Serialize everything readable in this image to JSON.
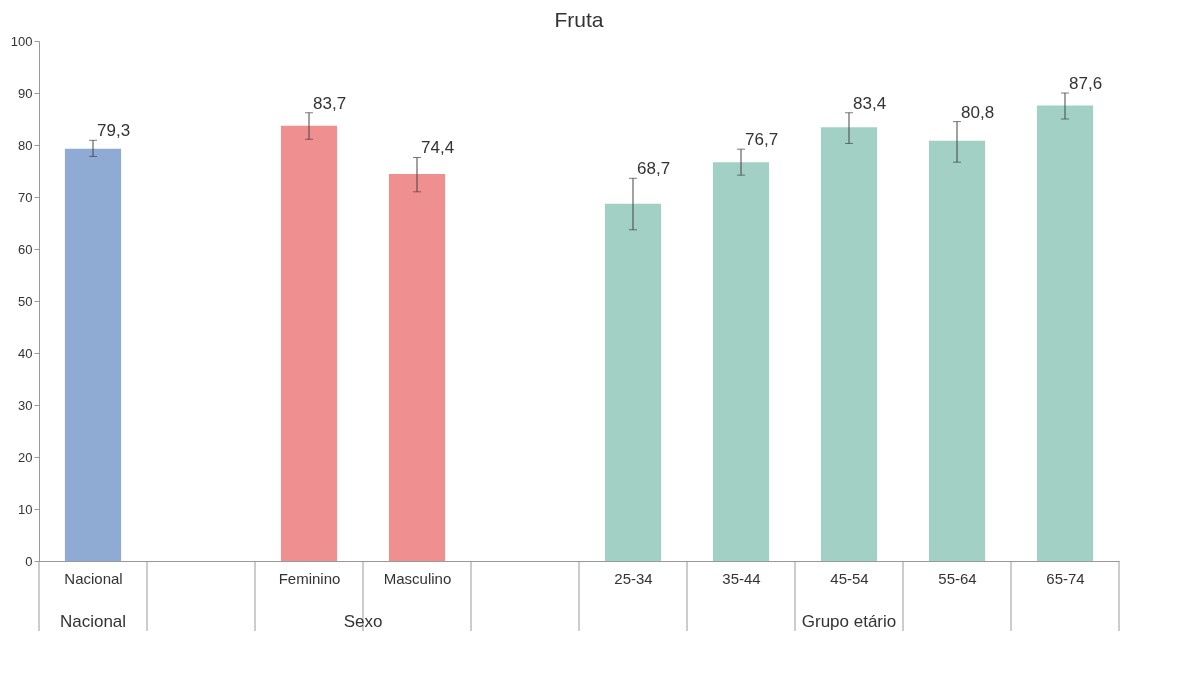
{
  "chart_data": {
    "type": "bar",
    "title": "Fruta",
    "categories": [
      "Nacional",
      null,
      "Feminino",
      "Masculino",
      null,
      "25-34",
      "35-44",
      "45-54",
      "55-64",
      "65-74"
    ],
    "values": [
      79.3,
      null,
      83.7,
      74.4,
      null,
      68.7,
      76.7,
      83.4,
      80.8,
      87.6
    ],
    "colors": [
      "#8faad3",
      null,
      "#ef8f8f",
      "#ef8f8f",
      null,
      "#a2d0c4",
      "#a2d0c4",
      "#a2d0c4",
      "#a2d0c4",
      "#a2d0c4"
    ],
    "errors": [
      [
        77.8,
        80.9
      ],
      null,
      [
        81.1,
        86.2
      ],
      [
        71.0,
        77.6
      ],
      null,
      [
        63.7,
        73.6
      ],
      [
        74.2,
        79.2
      ],
      [
        80.3,
        86.2
      ],
      [
        76.7,
        84.5
      ],
      [
        85.0,
        90.0
      ]
    ],
    "value_labels": [
      "79,3",
      null,
      "83,7",
      "74,4",
      null,
      "68,7",
      "76,7",
      "83,4",
      "80,8",
      "87,6"
    ],
    "annotations": [
      "Nacional",
      "Sexo",
      "Grupo etário"
    ],
    "ylim": [
      0,
      100
    ],
    "yticks": [
      0,
      10,
      20,
      30,
      40,
      50,
      60,
      70,
      80,
      90,
      100
    ],
    "grid": false
  }
}
